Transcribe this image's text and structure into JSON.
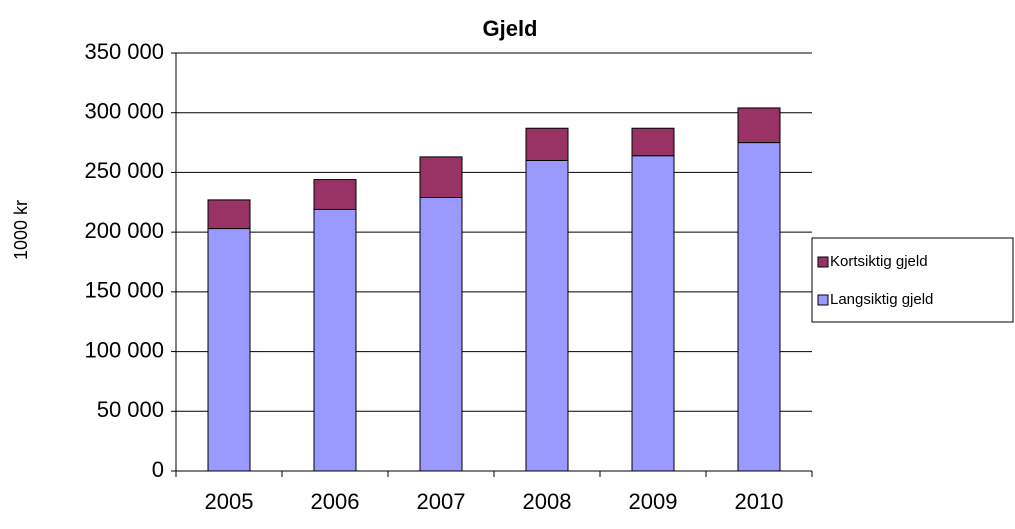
{
  "chart_data": {
    "type": "stacked_bar",
    "title": "Gjeld",
    "y_label": "1000 kr",
    "categories": [
      "2005",
      "2006",
      "2007",
      "2008",
      "2009",
      "2010"
    ],
    "series": [
      {
        "name": "Langsiktig gjeld",
        "color": "#9999ff",
        "values": [
          203000,
          219000,
          229000,
          260000,
          264000,
          275000
        ]
      },
      {
        "name": "Kortsiktig gjeld",
        "color": "#993366",
        "values": [
          24000,
          25000,
          34000,
          27000,
          23000,
          29000
        ]
      }
    ],
    "ylim": [
      0,
      350000
    ],
    "yticks": [
      0,
      {
        "value": 50000,
        "label": "50 000"
      },
      {
        "value": 100000,
        "label": "100 000"
      },
      {
        "value": 150000,
        "label": "150 000"
      },
      {
        "value": 200000,
        "label": "200 000"
      },
      {
        "value": 250000,
        "label": "250 000"
      },
      {
        "value": 300000,
        "label": "300 000"
      },
      {
        "value": 350000,
        "label": "350 000"
      }
    ],
    "grid": true,
    "legend": "right"
  }
}
